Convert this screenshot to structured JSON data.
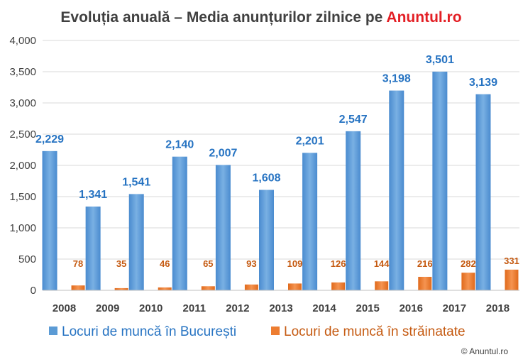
{
  "header": {
    "title_prefix": "Evoluția anuală – Media anunțurilor zilnice pe ",
    "title_brand": "Anuntul.ro"
  },
  "footer": {
    "copyright": "© Anuntul.ro"
  },
  "colors": {
    "bucuresti": "#5b9bd5",
    "strainatate": "#ed7d31",
    "brand": "#e31e24",
    "label_blue": "#2673c2",
    "label_orange": "#c55a11"
  },
  "chart_data": {
    "type": "bar",
    "title": "Evoluția anuală – Media anunțurilor zilnice pe Anuntul.ro",
    "xlabel": "",
    "ylabel": "",
    "ylim": [
      0,
      4000
    ],
    "yticks": [
      "0",
      "500",
      "1,000",
      "1,500",
      "2,000",
      "2,500",
      "3,000",
      "3,500",
      "4,000"
    ],
    "ytick_values": [
      0,
      500,
      1000,
      1500,
      2000,
      2500,
      3000,
      3500,
      4000
    ],
    "grid": true,
    "legend_position": "bottom",
    "categories": [
      "2008",
      "2009",
      "2010",
      "2011",
      "2012",
      "2013",
      "2014",
      "2015",
      "2016",
      "2017",
      "2018"
    ],
    "series": [
      {
        "name": "Locuri de muncă în București",
        "values": [
          2229,
          1341,
          1541,
          2140,
          2007,
          1608,
          2201,
          2547,
          3198,
          3501,
          3139
        ],
        "labels": [
          "2,229",
          "1,341",
          "1,541",
          "2,140",
          "2,007",
          "1,608",
          "2,201",
          "2,547",
          "3,198",
          "3,501",
          "3,139"
        ]
      },
      {
        "name": "Locuri de muncă în străinatate",
        "values": [
          78,
          35,
          46,
          65,
          93,
          109,
          126,
          144,
          216,
          282,
          331
        ],
        "labels": [
          "78",
          "35",
          "46",
          "65",
          "93",
          "109",
          "126",
          "144",
          "216",
          "282",
          "331"
        ]
      }
    ]
  }
}
